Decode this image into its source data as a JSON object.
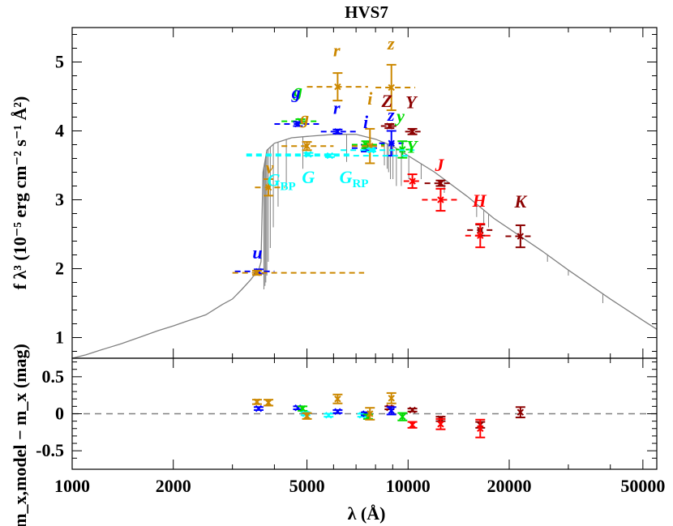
{
  "chart_data": {
    "type": "scatter",
    "title": "HVS7",
    "xlabel": "λ (Å)",
    "xscale": "log",
    "x_range": [
      1000,
      55000
    ],
    "x_ticks": [
      1000,
      2000,
      5000,
      10000,
      20000,
      50000
    ],
    "x_tick_labels": [
      "1000",
      "2000",
      "5000",
      "10000",
      "20000",
      "50000"
    ],
    "panels": [
      {
        "name": "sed",
        "ylabel": "f λ³ (10⁻⁵ erg cm⁻² s⁻¹ Å²)",
        "y_range": [
          0.7,
          5.5
        ],
        "y_ticks": [
          1,
          2,
          3,
          4,
          5
        ],
        "y_tick_labels": [
          "1",
          "2",
          "3",
          "4",
          "5"
        ],
        "model_color": "#808080",
        "model_curve": [
          [
            1000,
            0.7
          ],
          [
            1100,
            0.75
          ],
          [
            1200,
            0.81
          ],
          [
            1400,
            0.91
          ],
          [
            1600,
            1.01
          ],
          [
            1800,
            1.1
          ],
          [
            2000,
            1.17
          ],
          [
            2200,
            1.24
          ],
          [
            2500,
            1.33
          ],
          [
            2800,
            1.48
          ],
          [
            3000,
            1.56
          ],
          [
            3200,
            1.7
          ],
          [
            3400,
            1.84
          ],
          [
            3600,
            2.0
          ],
          [
            3650,
            2.1
          ],
          [
            3700,
            3.4
          ],
          [
            3800,
            3.72
          ],
          [
            4000,
            3.82
          ],
          [
            4500,
            3.9
          ],
          [
            5000,
            3.92
          ],
          [
            6000,
            3.95
          ],
          [
            7000,
            3.95
          ],
          [
            8000,
            3.88
          ],
          [
            9000,
            3.78
          ],
          [
            10000,
            3.64
          ],
          [
            12000,
            3.4
          ],
          [
            15000,
            3.05
          ],
          [
            18000,
            2.73
          ],
          [
            20000,
            2.58
          ],
          [
            25000,
            2.26
          ],
          [
            30000,
            1.98
          ],
          [
            40000,
            1.56
          ],
          [
            50000,
            1.25
          ],
          [
            55000,
            1.12
          ]
        ],
        "absorption_lines": [
          [
            3722,
            1.7
          ],
          [
            3750,
            1.75
          ],
          [
            3771,
            1.8
          ],
          [
            3798,
            1.9
          ],
          [
            3835,
            2.1
          ],
          [
            3889,
            2.3
          ],
          [
            3970,
            2.6
          ],
          [
            4102,
            2.9
          ],
          [
            4340,
            3.15
          ],
          [
            4861,
            3.45
          ],
          [
            6563,
            3.55
          ],
          [
            8500,
            3.5
          ],
          [
            8665,
            3.45
          ],
          [
            8750,
            3.4
          ],
          [
            8863,
            3.3
          ],
          [
            9015,
            3.3
          ],
          [
            9229,
            3.2
          ],
          [
            9546,
            3.2
          ],
          [
            10049,
            3.3
          ],
          [
            10938,
            3.3
          ],
          [
            12818,
            3.1
          ],
          [
            16000,
            2.75
          ],
          [
            16800,
            2.65
          ],
          [
            17360,
            2.6
          ],
          [
            21650,
            2.35
          ],
          [
            26000,
            2.1
          ],
          [
            30000,
            1.9
          ],
          [
            38000,
            1.5
          ]
        ],
        "points": [
          {
            "band": "u",
            "color": "#0000ff",
            "x": 3590,
            "y": 1.96,
            "yerr": 0.03,
            "xlo": 3050,
            "xhi": 4000
          },
          {
            "band": "u",
            "color": "#cc8800",
            "x": 3550,
            "y": 1.94,
            "yerr": 0.03,
            "xlo": 3000,
            "xhi": 7400
          },
          {
            "band": "v",
            "color": "#cc8800",
            "x": 3840,
            "y": 3.18,
            "yerr": 0.12,
            "xlo": 3500,
            "xhi": 4300
          },
          {
            "band": "g",
            "color": "#00dd00",
            "x": 4780,
            "y": 4.14,
            "yerr": 0.03,
            "xlo": 4200,
            "xhi": 5400
          },
          {
            "band": "g",
            "color": "#0000ff",
            "x": 4700,
            "y": 4.1,
            "yerr": 0.03,
            "xlo": 4000,
            "xhi": 5500
          },
          {
            "band": "g",
            "color": "#cc8800",
            "x": 5000,
            "y": 3.78,
            "yerr": 0.06,
            "xlo": 4200,
            "xhi": 6000
          },
          {
            "band": "r",
            "color": "#0000ff",
            "x": 6170,
            "y": 3.99,
            "yerr": 0.03,
            "xlo": 5500,
            "xhi": 7000
          },
          {
            "band": "r",
            "color": "#cc8800",
            "x": 6170,
            "y": 4.64,
            "yerr": 0.2,
            "xlo": 5000,
            "xhi": 7600
          },
          {
            "band": "i",
            "color": "#0000ff",
            "x": 7480,
            "y": 3.75,
            "yerr": 0.05,
            "xlo": 6800,
            "xhi": 8300
          },
          {
            "band": "i",
            "color": "#00dd00",
            "x": 7500,
            "y": 3.8,
            "yerr": 0.05,
            "xlo": 6800,
            "xhi": 8500
          },
          {
            "band": "i",
            "color": "#cc8800",
            "x": 7700,
            "y": 3.78,
            "yerr": 0.25,
            "xlo": 6800,
            "xhi": 8500
          },
          {
            "band": "z",
            "color": "#0000ff",
            "x": 8920,
            "y": 3.82,
            "yerr": 0.18,
            "xlo": 8200,
            "xhi": 9700
          },
          {
            "band": "z",
            "color": "#cc8800",
            "x": 8920,
            "y": 4.63,
            "yerr": 0.33,
            "xlo": 8000,
            "xhi": 10500
          },
          {
            "band": "Z",
            "color": "#8b0000",
            "x": 8800,
            "y": 4.07,
            "yerr": 0.03,
            "xlo": 8300,
            "xhi": 9300
          },
          {
            "band": "y",
            "color": "#00dd00",
            "x": 9620,
            "y": 3.73,
            "yerr": 0.12,
            "xlo": 9200,
            "xhi": 10300
          },
          {
            "band": "Y",
            "color": "#8b0000",
            "x": 10300,
            "y": 3.99,
            "yerr": 0.04,
            "xlo": 9800,
            "xhi": 10900
          },
          {
            "band": "Y",
            "color": "#ff0000",
            "x": 10300,
            "y": 3.27,
            "yerr": 0.1,
            "xlo": 9700,
            "xhi": 10900
          },
          {
            "band": "J",
            "color": "#8b0000",
            "x": 12500,
            "y": 3.24,
            "yerr": 0.04,
            "xlo": 11200,
            "xhi": 13400
          },
          {
            "band": "J",
            "color": "#ff0000",
            "x": 12500,
            "y": 3.0,
            "yerr": 0.16,
            "xlo": 11000,
            "xhi": 14000
          },
          {
            "band": "H",
            "color": "#8b0000",
            "x": 16400,
            "y": 2.56,
            "yerr": 0.08,
            "xlo": 15000,
            "xhi": 18000
          },
          {
            "band": "H",
            "color": "#ff0000",
            "x": 16400,
            "y": 2.48,
            "yerr": 0.17,
            "xlo": 14800,
            "xhi": 18000
          },
          {
            "band": "K",
            "color": "#8b0000",
            "x": 21600,
            "y": 2.47,
            "yerr": 0.16,
            "xlo": 19500,
            "xhi": 23500
          },
          {
            "band": "G_BP",
            "color": "#00ffff",
            "x": 5050,
            "y": 3.66,
            "yerr": 0.02,
            "xlo": 3300,
            "xhi": 6700
          },
          {
            "band": "G",
            "color": "#00ffff",
            "x": 5850,
            "y": 3.64,
            "yerr": 0.02,
            "xlo": 3300,
            "xhi": 10000
          },
          {
            "band": "G_RP",
            "color": "#00ffff",
            "x": 7770,
            "y": 3.72,
            "yerr": 0.02,
            "xlo": 6300,
            "xhi": 10500
          }
        ],
        "band_labels": [
          {
            "text": "u",
            "color": "#0000ff",
            "x": 3560,
            "y": 2.15,
            "sub": ""
          },
          {
            "text": "v",
            "color": "#cc8800",
            "x": 3870,
            "y": 3.38,
            "sub": ""
          },
          {
            "text": "g",
            "color": "#00dd00",
            "x": 4700,
            "y": 4.5,
            "sub": ""
          },
          {
            "text": "g",
            "color": "#0000ff",
            "x": 4640,
            "y": 4.47,
            "sub": ""
          },
          {
            "text": "g",
            "color": "#cc8800",
            "x": 4920,
            "y": 4.1,
            "sub": ""
          },
          {
            "text": "r",
            "color": "#cc8800",
            "x": 6130,
            "y": 5.08,
            "sub": ""
          },
          {
            "text": "r",
            "color": "#0000ff",
            "x": 6130,
            "y": 4.25,
            "sub": ""
          },
          {
            "text": "i",
            "color": "#cc8800",
            "x": 7700,
            "y": 4.38,
            "sub": ""
          },
          {
            "text": "i",
            "color": "#0000ff",
            "x": 7480,
            "y": 4.04,
            "sub": ""
          },
          {
            "text": "z",
            "color": "#cc8800",
            "x": 8900,
            "y": 5.18,
            "sub": ""
          },
          {
            "text": "Z",
            "color": "#8b0000",
            "x": 8650,
            "y": 4.35,
            "sub": ""
          },
          {
            "text": "z",
            "color": "#0000ff",
            "x": 8900,
            "y": 4.15,
            "sub": ""
          },
          {
            "text": "y",
            "color": "#00dd00",
            "x": 9500,
            "y": 4.13,
            "sub": ""
          },
          {
            "text": "Y",
            "color": "#8b0000",
            "x": 10200,
            "y": 4.33,
            "sub": ""
          },
          {
            "text": "Y",
            "color": "#00dd00",
            "x": 10250,
            "y": 3.68,
            "sub": ""
          },
          {
            "text": "J",
            "color": "#ff0000",
            "x": 12400,
            "y": 3.42,
            "sub": ""
          },
          {
            "text": "H",
            "color": "#ff0000",
            "x": 16300,
            "y": 2.9,
            "sub": ""
          },
          {
            "text": "K",
            "color": "#8b0000",
            "x": 21600,
            "y": 2.89,
            "sub": ""
          },
          {
            "text": "G",
            "color": "#00ffff",
            "x": 4200,
            "y": 3.2,
            "sub": "BP"
          },
          {
            "text": "G",
            "color": "#00ffff",
            "x": 5050,
            "y": 3.24,
            "sub": ""
          },
          {
            "text": "G",
            "color": "#00ffff",
            "x": 6900,
            "y": 3.24,
            "sub": "RP"
          }
        ]
      },
      {
        "name": "residuals",
        "ylabel": "m_x,model − m_x (mag)",
        "y_range": [
          -0.75,
          0.75
        ],
        "y_ticks": [
          -0.5,
          0,
          0.5
        ],
        "y_tick_labels": [
          "-0.5",
          "0",
          "0.5"
        ],
        "zero_line": 0,
        "points": [
          {
            "color": "#0000ff",
            "x": 3590,
            "y": 0.07,
            "yerr": 0.02
          },
          {
            "color": "#cc8800",
            "x": 3550,
            "y": 0.16,
            "yerr": 0.03
          },
          {
            "color": "#cc8800",
            "x": 3840,
            "y": 0.15,
            "yerr": 0.04
          },
          {
            "color": "#0000ff",
            "x": 4700,
            "y": 0.08,
            "yerr": 0.02
          },
          {
            "color": "#00dd00",
            "x": 4850,
            "y": 0.07,
            "yerr": 0.03
          },
          {
            "color": "#00ffff",
            "x": 4950,
            "y": 0.0,
            "yerr": 0.02
          },
          {
            "color": "#cc8800",
            "x": 5000,
            "y": -0.03,
            "yerr": 0.04
          },
          {
            "color": "#00ffff",
            "x": 5800,
            "y": -0.02,
            "yerr": 0.02
          },
          {
            "color": "#cc8800",
            "x": 6170,
            "y": 0.2,
            "yerr": 0.06
          },
          {
            "color": "#0000ff",
            "x": 6170,
            "y": 0.03,
            "yerr": 0.02
          },
          {
            "color": "#00ffff",
            "x": 7300,
            "y": -0.02,
            "yerr": 0.02
          },
          {
            "color": "#0000ff",
            "x": 7480,
            "y": 0.0,
            "yerr": 0.02
          },
          {
            "color": "#00dd00",
            "x": 7600,
            "y": -0.04,
            "yerr": 0.03
          },
          {
            "color": "#cc8800",
            "x": 7700,
            "y": 0.0,
            "yerr": 0.08
          },
          {
            "color": "#8b0000",
            "x": 8800,
            "y": 0.08,
            "yerr": 0.02
          },
          {
            "color": "#0000ff",
            "x": 8920,
            "y": 0.04,
            "yerr": 0.05
          },
          {
            "color": "#cc8800",
            "x": 8920,
            "y": 0.21,
            "yerr": 0.07
          },
          {
            "color": "#00dd00",
            "x": 9620,
            "y": -0.04,
            "yerr": 0.05
          },
          {
            "color": "#8b0000",
            "x": 10300,
            "y": 0.05,
            "yerr": 0.02
          },
          {
            "color": "#ff0000",
            "x": 10300,
            "y": -0.15,
            "yerr": 0.04
          },
          {
            "color": "#8b0000",
            "x": 12500,
            "y": -0.07,
            "yerr": 0.03
          },
          {
            "color": "#ff0000",
            "x": 12500,
            "y": -0.14,
            "yerr": 0.07
          },
          {
            "color": "#8b0000",
            "x": 16400,
            "y": -0.15,
            "yerr": 0.04
          },
          {
            "color": "#ff0000",
            "x": 16400,
            "y": -0.2,
            "yerr": 0.12
          },
          {
            "color": "#8b0000",
            "x": 21600,
            "y": 0.02,
            "yerr": 0.07
          }
        ]
      }
    ],
    "grid": false
  }
}
